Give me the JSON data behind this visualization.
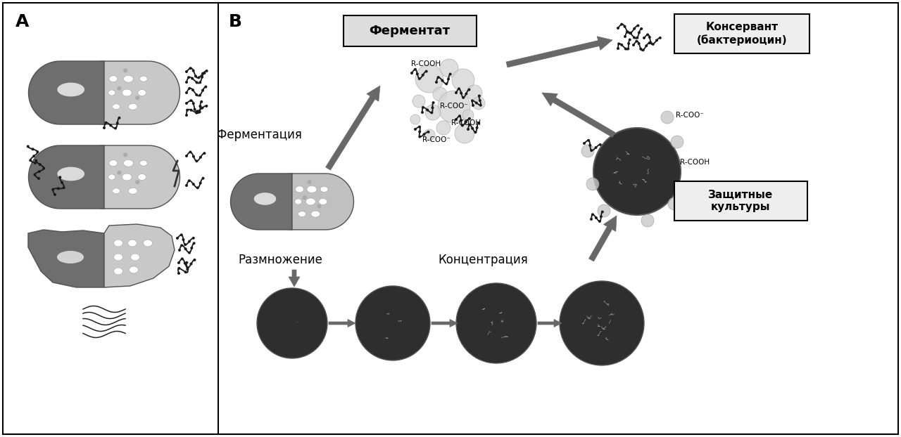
{
  "bg_color": "#ffffff",
  "border_color": "#000000",
  "label_A": "A",
  "label_B": "B",
  "fermenter_label": "Ферментат",
  "fermentation_label": "Ферментация",
  "multiplication_label": "Размножение",
  "concentration_label": "Концентрация",
  "preservative_label": "Консервант\n(бактериоцин)",
  "protective_label": "Защитные\nкультуры",
  "rcooh_label": "R-COOH",
  "rcoo_label": "R-COO⁻",
  "capsule_dark": "#6e6e6e",
  "capsule_light": "#b8b8b8",
  "capsule_light2": "#c8c8c8",
  "dark_circle": "#2e2e2e",
  "arrow_color": "#686868",
  "small_circle_color": "#c8c8c8",
  "box_fill": "#e8e8e8",
  "box_edge": "#000000",
  "cloud_circle_color": "#d4d4d4"
}
